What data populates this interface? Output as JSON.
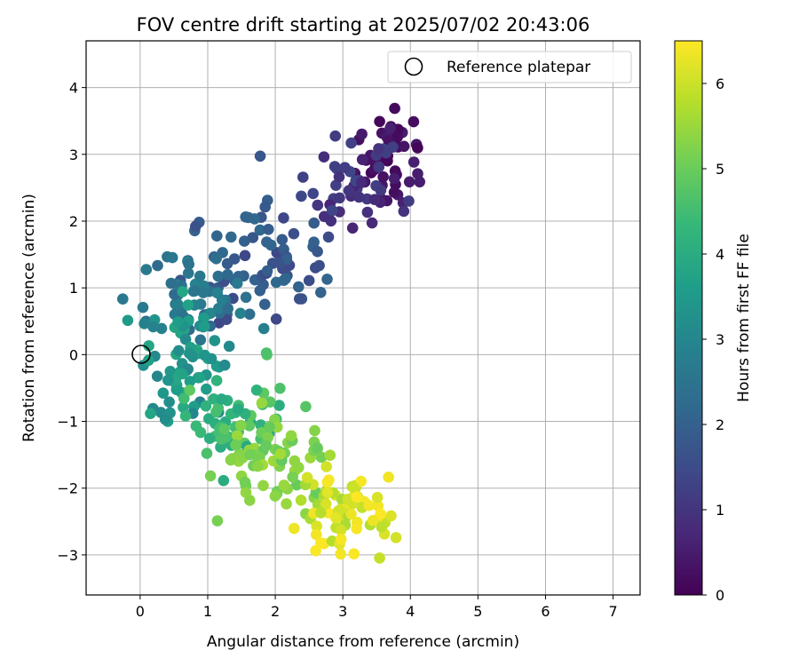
{
  "chart_data": {
    "type": "scatter",
    "title": "FOV centre drift starting at 2025/07/02 20:43:06",
    "xlabel": "Angular distance from reference (arcmin)",
    "ylabel": "Rotation from reference (arcmin)",
    "xlim": [
      -0.8,
      7.4
    ],
    "ylim": [
      -3.6,
      4.7
    ],
    "xticks": [
      "0",
      "1",
      "2",
      "3",
      "4",
      "5",
      "6",
      "7"
    ],
    "yticks": [
      "−3",
      "−2",
      "−1",
      "0",
      "1",
      "2",
      "3",
      "4"
    ],
    "grid": true,
    "legend": {
      "placement": "top-right",
      "entries": [
        "Reference platepar"
      ]
    },
    "reference_point": {
      "x": 0,
      "y": 0,
      "label": "Reference platepar"
    },
    "colorbar": {
      "label": "Hours from first FF file",
      "range": [
        0,
        6.5
      ],
      "ticks": [
        "0",
        "1",
        "2",
        "3",
        "4",
        "5",
        "6"
      ],
      "colormap": "viridis",
      "colors": [
        "#440154",
        "#482878",
        "#3e4989",
        "#31688e",
        "#26828e",
        "#1f9e89",
        "#35b779",
        "#6ece58",
        "#b5de2b",
        "#fde725"
      ]
    },
    "clusters": [
      {
        "hours": [
          0.0,
          0.6
        ],
        "center_x": 3.7,
        "center_y": 3.0,
        "spread_x": 0.28,
        "spread_y": 0.38,
        "count": 45
      },
      {
        "hours": [
          0.6,
          1.4
        ],
        "center_x": 3.15,
        "center_y": 2.5,
        "spread_x": 0.35,
        "spread_y": 0.4,
        "count": 45
      },
      {
        "hours": [
          1.4,
          2.2
        ],
        "center_x": 1.9,
        "center_y": 1.45,
        "spread_x": 0.6,
        "spread_y": 0.4,
        "count": 75
      },
      {
        "hours": [
          2.2,
          2.9
        ],
        "center_x": 0.9,
        "center_y": 0.75,
        "spread_x": 0.4,
        "spread_y": 0.35,
        "count": 55
      },
      {
        "hours": [
          2.9,
          3.9
        ],
        "center_x": 0.65,
        "center_y": -0.05,
        "spread_x": 0.25,
        "spread_y": 0.45,
        "count": 70
      },
      {
        "hours": [
          3.9,
          4.9
        ],
        "center_x": 1.35,
        "center_y": -1.05,
        "spread_x": 0.45,
        "spread_y": 0.35,
        "count": 60
      },
      {
        "hours": [
          4.9,
          5.6
        ],
        "center_x": 2.05,
        "center_y": -1.6,
        "spread_x": 0.4,
        "spread_y": 0.35,
        "count": 65
      },
      {
        "hours": [
          5.6,
          6.5
        ],
        "center_x": 2.95,
        "center_y": -2.35,
        "spread_x": 0.3,
        "spread_y": 0.35,
        "count": 75
      }
    ]
  }
}
